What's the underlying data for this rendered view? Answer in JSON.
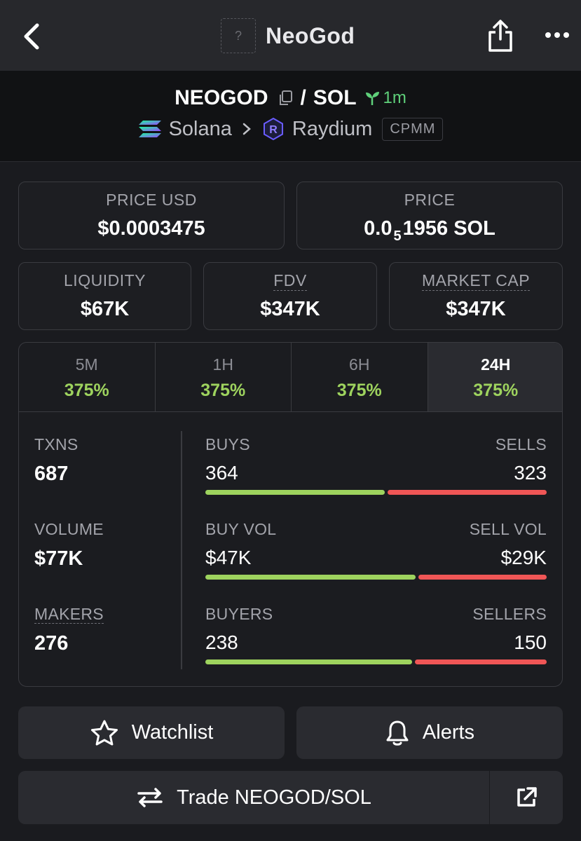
{
  "header": {
    "title": "NeoGod",
    "avatar_placeholder": "?"
  },
  "pair": {
    "base": "NEOGOD",
    "separator": "/",
    "quote": "SOL",
    "age": "1m",
    "chain": "Solana",
    "dex": "Raydium",
    "pool_type": "CPMM"
  },
  "prices": {
    "price_usd_label": "PRICE USD",
    "price_usd_value": "$0.0003475",
    "price_label": "PRICE",
    "price_prefix": "0.0",
    "price_zeros": "5",
    "price_suffix": "1956 SOL"
  },
  "metrics": {
    "liquidity_label": "LIQUIDITY",
    "liquidity_value": "$67K",
    "fdv_label": "FDV",
    "fdv_value": "$347K",
    "mcap_label": "MARKET CAP",
    "mcap_value": "$347K"
  },
  "tabs": [
    {
      "label": "5M",
      "change": "375%"
    },
    {
      "label": "1H",
      "change": "375%"
    },
    {
      "label": "6H",
      "change": "375%"
    },
    {
      "label": "24H",
      "change": "375%"
    }
  ],
  "stats": {
    "txns_label": "TXNS",
    "txns_value": "687",
    "volume_label": "VOLUME",
    "volume_value": "$77K",
    "makers_label": "MAKERS",
    "makers_value": "276",
    "buys_label": "BUYS",
    "buys_value": "364",
    "sells_label": "SELLS",
    "sells_value": "323",
    "buy_vol_label": "BUY VOL",
    "buy_vol_value": "$47K",
    "sell_vol_label": "SELL VOL",
    "sell_vol_value": "$29K",
    "buyers_label": "BUYERS",
    "buyers_value": "238",
    "sellers_label": "SELLERS",
    "sellers_value": "150",
    "buys_share": 0.53,
    "buy_vol_share": 0.62,
    "buyers_share": 0.61,
    "buy_color": "#9ed35e",
    "sell_color": "#f05656"
  },
  "actions": {
    "watchlist_label": "Watchlist",
    "alerts_label": "Alerts",
    "trade_label": "Trade NEOGOD/SOL"
  }
}
